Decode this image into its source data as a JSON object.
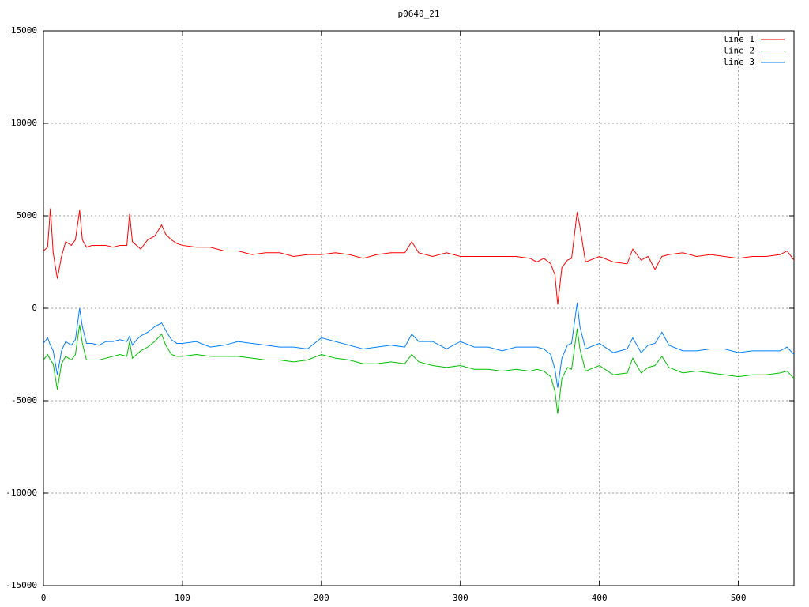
{
  "chart_data": {
    "type": "line",
    "title": "p0640_21",
    "x": [
      0,
      3,
      5,
      7,
      10,
      13,
      16,
      20,
      23,
      26,
      28,
      31,
      35,
      40,
      45,
      50,
      55,
      60,
      62,
      64,
      67,
      70,
      75,
      80,
      85,
      88,
      92,
      96,
      100,
      110,
      120,
      130,
      140,
      150,
      160,
      170,
      180,
      190,
      200,
      210,
      220,
      230,
      240,
      250,
      260,
      265,
      270,
      280,
      290,
      300,
      310,
      320,
      330,
      340,
      350,
      355,
      360,
      365,
      368,
      370,
      373,
      377,
      380,
      384,
      386,
      390,
      400,
      410,
      420,
      424,
      430,
      435,
      440,
      445,
      450,
      460,
      470,
      480,
      490,
      500,
      510,
      520,
      530,
      535,
      540
    ],
    "series": [
      {
        "name": "line 1",
        "color": "#ff0000",
        "values": [
          3100,
          3300,
          5400,
          3000,
          1600,
          2800,
          3600,
          3400,
          3700,
          5300,
          3700,
          3300,
          3400,
          3400,
          3400,
          3300,
          3400,
          3400,
          5100,
          3600,
          3400,
          3200,
          3700,
          3900,
          4500,
          4000,
          3700,
          3500,
          3400,
          3300,
          3300,
          3100,
          3100,
          2900,
          3000,
          3000,
          2800,
          2900,
          2900,
          3000,
          2900,
          2700,
          2900,
          3000,
          3000,
          3600,
          3000,
          2800,
          3000,
          2800,
          2800,
          2800,
          2800,
          2800,
          2700,
          2500,
          2700,
          2400,
          1800,
          200,
          2200,
          2600,
          2700,
          5200,
          4400,
          2500,
          2800,
          2500,
          2400,
          3200,
          2600,
          2800,
          2100,
          2800,
          2900,
          3000,
          2800,
          2900,
          2800,
          2700,
          2800,
          2800,
          2900,
          3100,
          2600
        ]
      },
      {
        "name": "line 2",
        "color": "#00c000",
        "values": [
          -2800,
          -2500,
          -2800,
          -3000,
          -4400,
          -3000,
          -2600,
          -2800,
          -2500,
          -900,
          -1900,
          -2800,
          -2800,
          -2800,
          -2700,
          -2600,
          -2500,
          -2600,
          -1800,
          -2700,
          -2500,
          -2300,
          -2100,
          -1800,
          -1400,
          -2000,
          -2500,
          -2600,
          -2600,
          -2500,
          -2600,
          -2600,
          -2600,
          -2700,
          -2800,
          -2800,
          -2900,
          -2800,
          -2500,
          -2700,
          -2800,
          -3000,
          -3000,
          -2900,
          -3000,
          -2500,
          -2900,
          -3100,
          -3200,
          -3100,
          -3300,
          -3300,
          -3400,
          -3300,
          -3400,
          -3300,
          -3400,
          -3700,
          -4500,
          -5700,
          -3800,
          -3200,
          -3300,
          -1100,
          -2200,
          -3400,
          -3100,
          -3600,
          -3500,
          -2700,
          -3500,
          -3200,
          -3100,
          -2600,
          -3200,
          -3500,
          -3400,
          -3500,
          -3600,
          -3700,
          -3600,
          -3600,
          -3500,
          -3400,
          -3800
        ]
      },
      {
        "name": "line 3",
        "color": "#0080ff",
        "values": [
          -1900,
          -1600,
          -2000,
          -2300,
          -3600,
          -2300,
          -1800,
          -2000,
          -1700,
          0,
          -1000,
          -1900,
          -1900,
          -2000,
          -1800,
          -1800,
          -1700,
          -1800,
          -1500,
          -2000,
          -1700,
          -1500,
          -1300,
          -1000,
          -800,
          -1200,
          -1700,
          -1900,
          -1900,
          -1800,
          -2100,
          -2000,
          -1800,
          -1900,
          -2000,
          -2100,
          -2100,
          -2200,
          -1600,
          -1800,
          -2000,
          -2200,
          -2100,
          -2000,
          -2100,
          -1400,
          -1800,
          -1800,
          -2200,
          -1800,
          -2100,
          -2100,
          -2300,
          -2100,
          -2100,
          -2100,
          -2200,
          -2500,
          -3300,
          -4300,
          -2700,
          -2000,
          -1900,
          300,
          -1000,
          -2200,
          -1900,
          -2400,
          -2200,
          -1600,
          -2400,
          -2000,
          -1900,
          -1300,
          -2000,
          -2300,
          -2300,
          -2200,
          -2200,
          -2400,
          -2300,
          -2300,
          -2300,
          -2100,
          -2500
        ]
      }
    ],
    "xlim": [
      0,
      540
    ],
    "xticks": [
      0,
      100,
      200,
      300,
      400,
      500
    ],
    "ylim": [
      -15000,
      15000
    ],
    "yticks": [
      -15000,
      -10000,
      -5000,
      0,
      5000,
      10000,
      15000
    ],
    "grid": true,
    "legend": "top-right"
  }
}
